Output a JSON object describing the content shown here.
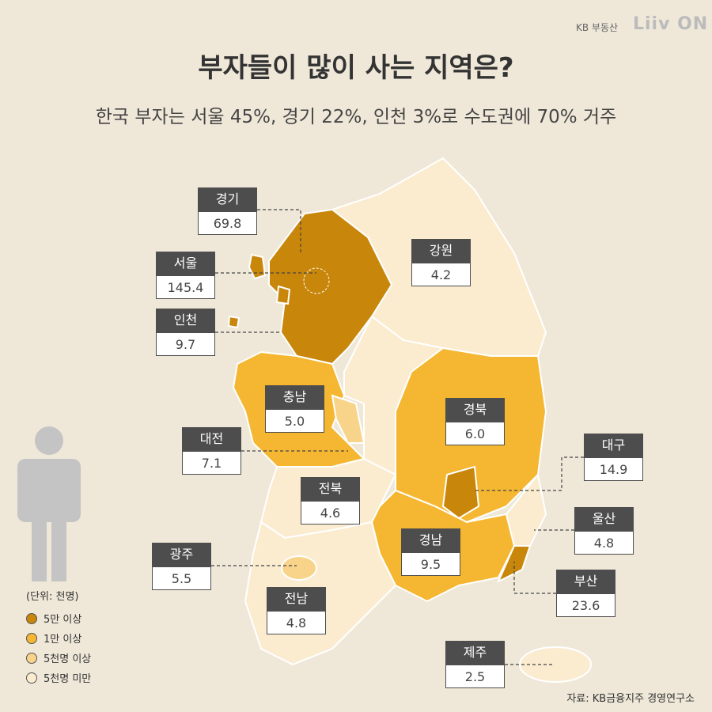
{
  "header": {
    "brand": "KB 부동산",
    "logo": "Liiv ON",
    "title": "부자들이 많이 사는 지역은?",
    "subtitle": "한국 부자는 서울 45%, 경기 22%, 인천 3%로 수도권에 70% 거주"
  },
  "regions": [
    {
      "name": "경기",
      "value": "69.8"
    },
    {
      "name": "서울",
      "value": "145.4"
    },
    {
      "name": "인천",
      "value": "9.7"
    },
    {
      "name": "강원",
      "value": "4.2"
    },
    {
      "name": "충남",
      "value": "5.0"
    },
    {
      "name": "대전",
      "value": "7.1"
    },
    {
      "name": "경북",
      "value": "6.0"
    },
    {
      "name": "대구",
      "value": "14.9"
    },
    {
      "name": "전북",
      "value": "4.6"
    },
    {
      "name": "울산",
      "value": "4.8"
    },
    {
      "name": "경남",
      "value": "9.5"
    },
    {
      "name": "광주",
      "value": "5.5"
    },
    {
      "name": "전남",
      "value": "4.8"
    },
    {
      "name": "부산",
      "value": "23.6"
    },
    {
      "name": "제주",
      "value": "2.5"
    }
  ],
  "legend": {
    "unit": "(단위: 천명)",
    "items": [
      "5만 이상",
      "1만 이상",
      "5천명 이상",
      "5천명 미만"
    ]
  },
  "source": "자료: KB금융지주 경영연구소"
}
